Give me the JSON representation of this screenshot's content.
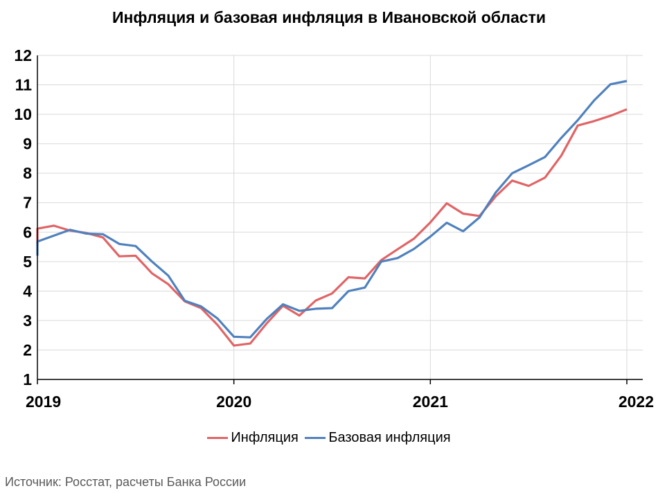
{
  "title": "Инфляция и базовая инфляция в Ивановской области",
  "source": "Источник: Росстат, расчеты Банка России",
  "colors": {
    "inflation": "#e06466",
    "core": "#4f81bd",
    "grid": "#d9d9d9",
    "axis": "#000000"
  },
  "chart_data": {
    "type": "line",
    "title": "Инфляция и базовая инфляция в Ивановской области",
    "ylim": [
      1,
      12
    ],
    "yticks": [
      "1",
      "2",
      "3",
      "4",
      "5",
      "6",
      "7",
      "8",
      "9",
      "10",
      "11",
      "12"
    ],
    "xticks": [
      "2019",
      "2020",
      "2021",
      "2022"
    ],
    "x_range": [
      "2019-01",
      "2022-01"
    ],
    "grid": true,
    "legend_position": "bottom",
    "x": [
      "2019-01",
      "2019-02",
      "2019-03",
      "2019-04",
      "2019-05",
      "2019-06",
      "2019-07",
      "2019-08",
      "2019-09",
      "2019-10",
      "2019-11",
      "2019-12",
      "2020-01",
      "2020-02",
      "2020-03",
      "2020-04",
      "2020-05",
      "2020-06",
      "2020-07",
      "2020-08",
      "2020-09",
      "2020-10",
      "2020-11",
      "2020-12",
      "2021-01",
      "2021-02",
      "2021-03",
      "2021-04",
      "2021-05",
      "2021-06",
      "2021-07",
      "2021-08",
      "2021-09",
      "2021-10",
      "2021-11",
      "2021-12",
      "2022-01"
    ],
    "series": [
      {
        "name": "Инфляция",
        "color": "#e06466",
        "values": [
          6.12,
          6.22,
          6.05,
          5.97,
          5.82,
          5.18,
          5.2,
          4.6,
          4.23,
          3.65,
          3.42,
          2.85,
          2.15,
          2.22,
          2.9,
          3.5,
          3.17,
          3.68,
          3.92,
          4.47,
          4.43,
          5.05,
          5.42,
          5.78,
          6.33,
          6.98,
          6.63,
          6.55,
          7.22,
          7.75,
          7.57,
          7.85,
          8.6,
          9.62,
          9.77,
          9.95,
          10.17
        ]
      },
      {
        "name": "Базовая инфляция",
        "color": "#4f81bd",
        "values": [
          5.68,
          5.88,
          6.08,
          5.95,
          5.93,
          5.6,
          5.53,
          5.0,
          4.52,
          3.67,
          3.48,
          3.07,
          2.45,
          2.43,
          3.05,
          3.55,
          3.33,
          3.4,
          3.42,
          4.0,
          4.12,
          5.0,
          5.12,
          5.43,
          5.85,
          6.32,
          6.03,
          6.5,
          7.35,
          8.0,
          8.27,
          8.55,
          9.2,
          9.8,
          10.47,
          11.02,
          11.13
        ]
      }
    ],
    "start_values": {
      "Инфляция": 5.55,
      "Базовая инфляция": 5.2
    }
  }
}
